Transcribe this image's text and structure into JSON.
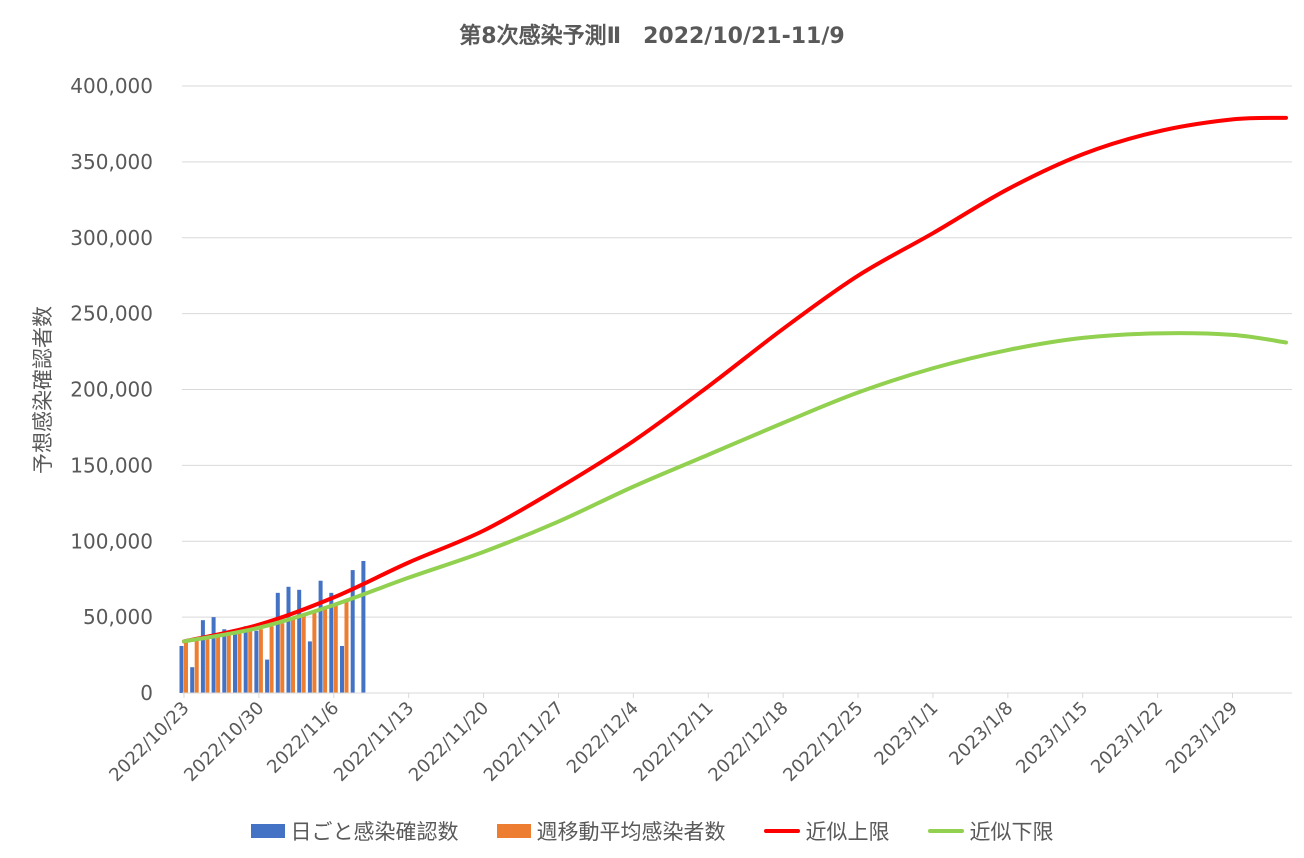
{
  "chart_data": {
    "type": "bar",
    "title": "第8次感染予測Ⅱ　2022/10/21-11/9",
    "ylabel": "予想感染確認者数",
    "xlabel": "",
    "ylim": [
      0,
      400000
    ],
    "yticks": [
      0,
      50000,
      100000,
      150000,
      200000,
      250000,
      300000,
      350000,
      400000
    ],
    "ytick_labels": [
      "0",
      "50,000",
      "100,000",
      "150,000",
      "200,000",
      "250,000",
      "300,000",
      "350,000",
      "400,000"
    ],
    "x_start": "2022/10/23",
    "x_end": "2023/2/3",
    "xtick_labels": [
      "2022/10/23",
      "2022/10/30",
      "2022/11/6",
      "2022/11/13",
      "2022/11/20",
      "2022/11/27",
      "2022/12/4",
      "2022/12/11",
      "2022/12/18",
      "2022/12/25",
      "2023/1/1",
      "2023/1/8",
      "2023/1/15",
      "2023/1/22",
      "2023/1/29"
    ],
    "grid": true,
    "legend_position": "bottom",
    "colors": {
      "daily": "#4472C4",
      "weekly": "#ED7D31",
      "upper": "#FF0000",
      "lower": "#92D050",
      "grid": "#D9D9D9",
      "text": "#595959"
    },
    "series": [
      {
        "name": "日ごと感染確認数",
        "kind": "bar",
        "dates": [
          "2022/10/23",
          "2022/10/24",
          "2022/10/25",
          "2022/10/26",
          "2022/10/27",
          "2022/10/28",
          "2022/10/29",
          "2022/10/30",
          "2022/10/31",
          "2022/11/1",
          "2022/11/2",
          "2022/11/3",
          "2022/11/4",
          "2022/11/5",
          "2022/11/6",
          "2022/11/7",
          "2022/11/8",
          "2022/11/9"
        ],
        "values": [
          31000,
          17000,
          48000,
          50000,
          42000,
          40000,
          44000,
          41000,
          22000,
          66000,
          70000,
          68000,
          34000,
          74000,
          66000,
          31000,
          81000,
          87000
        ]
      },
      {
        "name": "週移動平均感染者数",
        "kind": "bar",
        "dates": [
          "2022/10/23",
          "2022/10/24",
          "2022/10/25",
          "2022/10/26",
          "2022/10/27",
          "2022/10/28",
          "2022/10/29",
          "2022/10/30",
          "2022/10/31",
          "2022/11/1",
          "2022/11/2",
          "2022/11/3",
          "2022/11/4",
          "2022/11/5",
          "2022/11/6",
          "2022/11/7"
        ],
        "values": [
          35000,
          36000,
          37000,
          38000,
          39000,
          40000,
          41000,
          42000,
          44000,
          46000,
          49000,
          52000,
          53000,
          56000,
          58000,
          61000
        ]
      },
      {
        "name": "近似上限",
        "kind": "line",
        "dates": [
          "2022/10/23",
          "2022/10/30",
          "2022/11/6",
          "2022/11/13",
          "2022/11/20",
          "2022/11/27",
          "2022/12/4",
          "2022/12/11",
          "2022/12/18",
          "2022/12/25",
          "2023/1/1",
          "2023/1/8",
          "2023/1/15",
          "2023/1/22",
          "2023/1/29",
          "2023/2/3"
        ],
        "values": [
          34000,
          45000,
          63000,
          86000,
          107000,
          135000,
          166000,
          202000,
          240000,
          275000,
          303000,
          332000,
          355000,
          370000,
          378000,
          379000
        ]
      },
      {
        "name": "近似下限",
        "kind": "line",
        "dates": [
          "2022/10/23",
          "2022/10/30",
          "2022/11/6",
          "2022/11/13",
          "2022/11/20",
          "2022/11/27",
          "2022/12/4",
          "2022/12/11",
          "2022/12/18",
          "2022/12/25",
          "2023/1/1",
          "2023/1/8",
          "2023/1/15",
          "2023/1/22",
          "2023/1/29",
          "2023/2/3"
        ],
        "values": [
          34000,
          43000,
          58000,
          76000,
          93000,
          113000,
          136000,
          157000,
          178000,
          198000,
          214000,
          226000,
          234000,
          237000,
          236000,
          231000
        ]
      }
    ]
  }
}
